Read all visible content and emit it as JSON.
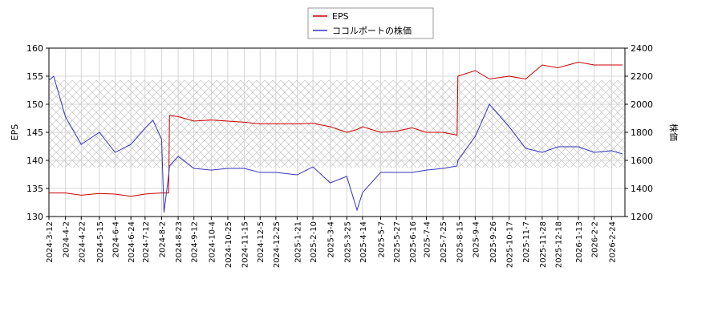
{
  "chart_data": {
    "type": "line",
    "x": [
      "2024-3-12",
      "2024-3-18",
      "2024-4-2",
      "2024-4-22",
      "2024-5-15",
      "2024-6-4",
      "2024-6-24",
      "2024-7-12",
      "2024-7-22",
      "2024-8-2",
      "2024-8-5",
      "2024-8-11",
      "2024-8-12",
      "2024-8-23",
      "2024-9-12",
      "2024-10-4",
      "2024-10-25",
      "2024-11-15",
      "2024-12-5",
      "2024-12-25",
      "2025-1-21",
      "2025-2-10",
      "2025-3-4",
      "2025-3-25",
      "2025-4-7",
      "2025-4-14",
      "2025-5-7",
      "2025-5-27",
      "2025-6-16",
      "2025-7-4",
      "2025-7-25",
      "2025-8-12",
      "2025-8-13",
      "2025-9-4",
      "2025-9-22",
      "2025-10-17",
      "2025-11-7",
      "2025-11-28",
      "2025-12-18",
      "2026-1-13",
      "2026-2-2",
      "2026-2-24",
      "2026-3-10"
    ],
    "series": [
      {
        "name": "EPS",
        "color": "#cc0000",
        "values": [
          134.2,
          134.2,
          134.2,
          133.8,
          134.1,
          134.0,
          133.6,
          134.0,
          134.1,
          134.2,
          134.2,
          134.2,
          148,
          147.8,
          147,
          147.2,
          147,
          146.8,
          146.5,
          146.5,
          146.5,
          146.6,
          146,
          145,
          145.5,
          146,
          145,
          145.2,
          145.8,
          145,
          145,
          144.5,
          155,
          156,
          154.5,
          155,
          154.5,
          157,
          156.5,
          157.5,
          157,
          157,
          157
        ]
      },
      {
        "name": "ココルポートの株価",
        "color": "#3333bb",
        "axis": "y2",
        "values": [
          2170,
          2200,
          1910,
          1714,
          1800,
          1657,
          1714,
          1829,
          1886,
          1750,
          1229,
          1500,
          1560,
          1629,
          1543,
          1531,
          1543,
          1543,
          1514,
          1514,
          1497,
          1554,
          1440,
          1486,
          1246,
          1371,
          1514,
          1514,
          1514,
          1531,
          1543,
          1560,
          1600,
          1771,
          2000,
          1840,
          1686,
          1657,
          1697,
          1697,
          1657,
          1669,
          1646
        ]
      }
    ],
    "y_label": "EPS",
    "y2_label": "株価",
    "xlim": [
      "2024-3-12",
      "2026-3-13"
    ],
    "xticks": [
      "2024-3-12",
      "2024-4-2",
      "2024-4-22",
      "2024-5-15",
      "2024-6-4",
      "2024-6-24",
      "2024-7-12",
      "2024-8-2",
      "2024-8-23",
      "2024-9-12",
      "2024-10-4",
      "2024-10-25",
      "2024-11-15",
      "2024-12-5",
      "2024-12-25",
      "2025-1-21",
      "2025-2-10",
      "2025-3-4",
      "2025-3-25",
      "2025-4-14",
      "2025-5-7",
      "2025-5-27",
      "2025-6-16",
      "2025-7-4",
      "2025-7-25",
      "2025-8-15",
      "2025-9-4",
      "2025-9-26",
      "2025-10-17",
      "2025-11-7",
      "2025-11-28",
      "2025-12-18",
      "2026-1-13",
      "2026-2-2",
      "2026-2-24"
    ],
    "ylim": [
      130,
      160
    ],
    "yticks": [
      130,
      135,
      140,
      145,
      150,
      155,
      160
    ],
    "y2lim": [
      1200,
      2400
    ],
    "y2ticks": [
      1200,
      1400,
      1600,
      1800,
      2000,
      2200,
      2400
    ],
    "grid": true,
    "legend": "top"
  }
}
